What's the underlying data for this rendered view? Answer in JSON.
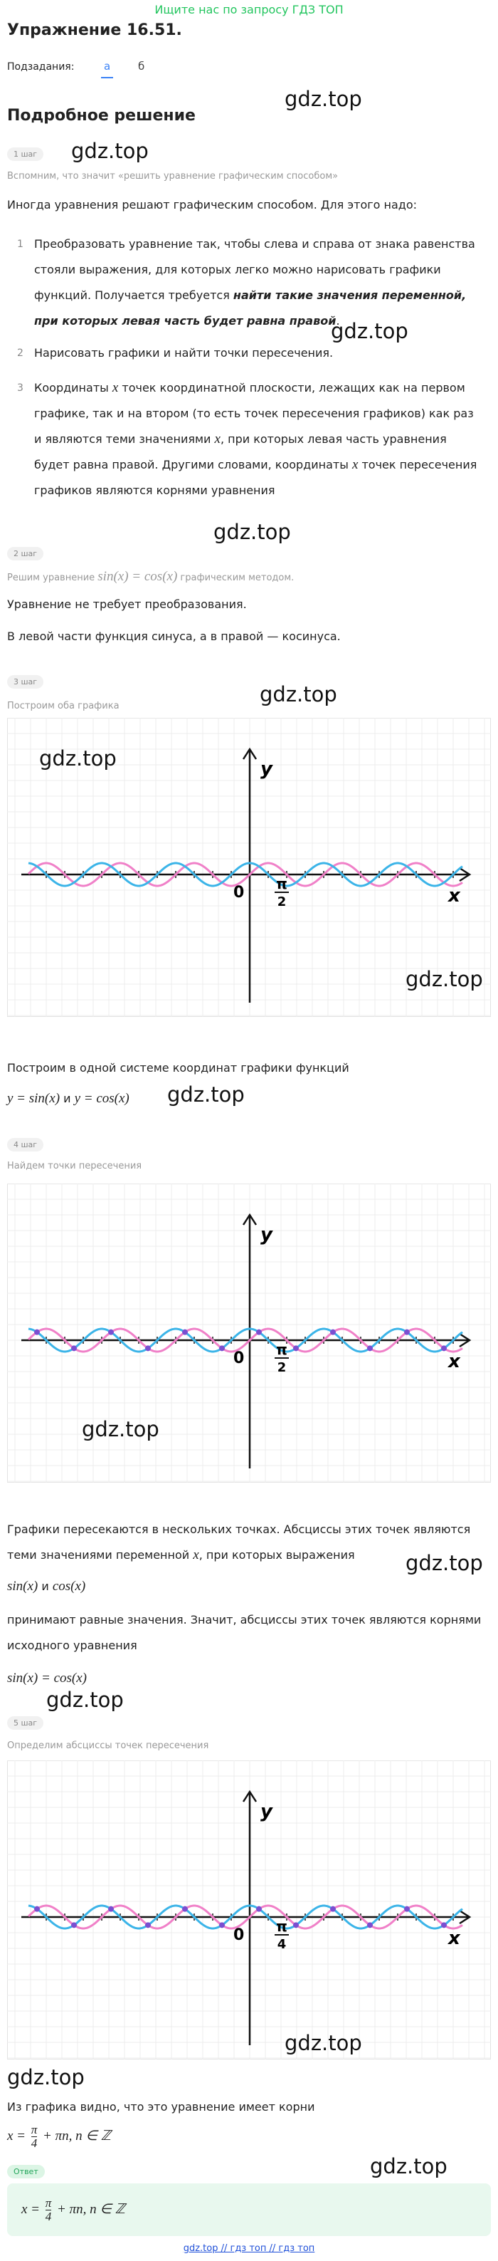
{
  "banner": "Ищите нас по запросу ГДЗ ТОП",
  "header": {
    "title": "Упражнение 16.51.",
    "subtasks_label": "Подзадания:",
    "tabs": [
      "а",
      "б"
    ]
  },
  "section_title": "Подробное решение",
  "watermark": "gdz.top",
  "steps": [
    {
      "badge": "1 шаг",
      "subtitle": [
        {
          "text": "Вспомним, что значит «решить уравнение графическим способом»"
        }
      ],
      "intro": "Иногда уравнения решают графическим способом. Для этого надо:",
      "items": [
        {
          "number": "1",
          "segments": [
            {
              "text": "Преобразовать уравнение так, чтобы слева и справа от знака равенства стояли выражения, для которых легко можно нарисовать графики функций. Получается требуется "
            },
            {
              "em": "найти такие значения переменной, при которых левая часть будет равна правой"
            },
            {
              "text": "."
            }
          ]
        },
        {
          "number": "2",
          "segments": [
            {
              "text": "Нарисовать графики и найти точки пересечения."
            }
          ]
        },
        {
          "number": "3",
          "segments": [
            {
              "text": "Координаты "
            },
            {
              "math": "x"
            },
            {
              "text": " точек координатной плоскости, лежащих как на первом графике, так и на втором (то есть точек пересечения графиков) как раз и являются теми значениями "
            },
            {
              "math": "x"
            },
            {
              "text": ", при которых левая часть уравнения будет равна правой. Другими словами, координаты "
            },
            {
              "math": "x"
            },
            {
              "text": " точек пересечения графиков являются корнями уравнения"
            }
          ]
        }
      ]
    },
    {
      "badge": "2 шаг",
      "subtitle": [
        {
          "text": "Решим уравнение "
        },
        {
          "math": "sin(x) = cos(x)"
        },
        {
          "text": " графическим методом."
        }
      ],
      "paragraphs": [
        "Уравнение не требует преобразования.",
        "В левой части функция синуса, а в правой — косинуса."
      ]
    },
    {
      "badge": "3 шаг",
      "subtitle": [
        {
          "text": "Построим оба графика"
        }
      ],
      "graph": {
        "labels": {
          "y": "y",
          "x": "x",
          "origin": "0",
          "tick": [
            "π",
            "2"
          ]
        },
        "mark_intersections": false
      },
      "paragraph": "Построим в одной системе координат графики функций",
      "formula": [
        {
          "math": "y = sin(x)"
        },
        {
          "text": " и "
        },
        {
          "math": "y = cos(x)"
        }
      ]
    },
    {
      "badge": "4 шаг",
      "subtitle": [
        {
          "text": "Найдем точки пересечения"
        }
      ],
      "graph": {
        "labels": {
          "y": "y",
          "x": "x",
          "origin": "0",
          "tick": [
            "π",
            "2"
          ]
        },
        "mark_intersections": true
      },
      "paragraph": [
        {
          "text": "Графики пересекаются в нескольких точках. Абсциссы этих точек являются теми значениями переменной "
        },
        {
          "math": "x"
        },
        {
          "text": ", при которых выражения"
        }
      ],
      "formula": [
        {
          "math": "sin(x)"
        },
        {
          "text": " и "
        },
        {
          "math": "cos(x)"
        }
      ],
      "paragraph2": "принимают равные значения. Значит, абсциссы этих точек являются корнями исходного уравнения",
      "formula2": [
        {
          "math": "sin(x) = cos(x)"
        }
      ]
    },
    {
      "badge": "5 шаг",
      "subtitle": [
        {
          "text": "Определим абсциссы точек пересечения"
        }
      ],
      "graph": {
        "labels": {
          "y": "y",
          "x": "x",
          "origin": "0",
          "tick": [
            "π",
            "4"
          ]
        },
        "mark_intersections": true
      },
      "paragraph": "Из графика видно, что это уравнение имеет корни",
      "formula": [
        {
          "math": "x = "
        },
        {
          "frac": [
            "π",
            "4"
          ]
        },
        {
          "math": " + πn, n ∈ ℤ"
        }
      ]
    }
  ],
  "answer": {
    "badge": "Ответ",
    "formula": [
      {
        "math": "x = "
      },
      {
        "frac": [
          "π",
          "4"
        ]
      },
      {
        "math": " + πn, n ∈ ℤ"
      }
    ]
  },
  "footer": "gdz.top // гдз топ // гдз топ"
}
